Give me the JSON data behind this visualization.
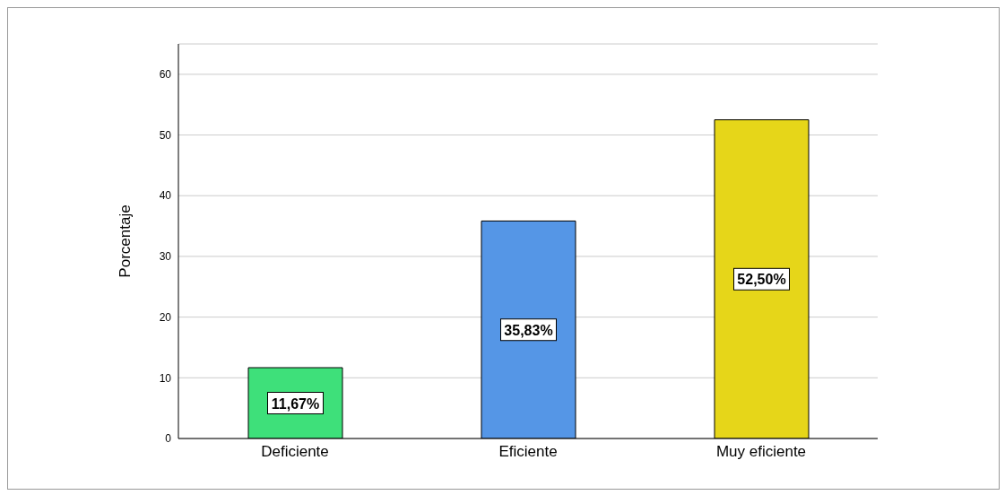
{
  "chart_data": {
    "type": "bar",
    "categories": [
      "Deficiente",
      "Eficiente",
      "Muy eficiente"
    ],
    "values": [
      11.67,
      35.83,
      52.5
    ],
    "colors": [
      "#3ee07a",
      "#5596e6",
      "#e6d619"
    ],
    "value_labels": [
      "11,67%",
      "35,83%",
      "52,50%"
    ],
    "ylabel": "Porcentaje",
    "ylim": [
      0,
      65
    ],
    "yticks": [
      0,
      10,
      20,
      30,
      40,
      50,
      60
    ],
    "grid": "y"
  }
}
